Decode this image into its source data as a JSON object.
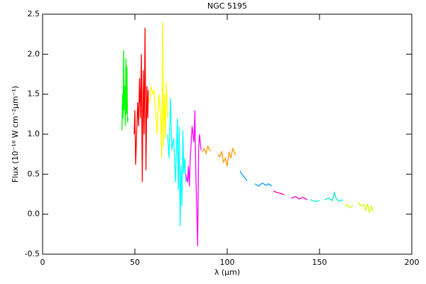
{
  "chart_data": {
    "type": "line",
    "title": "NGC 5195",
    "x_label": "λ (μm)",
    "y_label": "Flux (10⁻¹⁸ W cm⁻²μm⁻¹)",
    "xlim": [
      0,
      200
    ],
    "xticks": [
      0,
      50,
      100,
      150,
      200
    ],
    "ylim": [
      -0.5,
      2.5
    ],
    "yticks": [
      -0.5,
      {
        "value": 0,
        "label": "0.0"
      },
      0.5,
      {
        "value": 1,
        "label": "1.0"
      },
      1.5,
      {
        "value": 2,
        "label": "2.0"
      },
      2.5
    ],
    "grid": false,
    "series": [
      {
        "color": "#00ff00",
        "x": [
          43.0,
          43.3,
          43.6,
          43.9,
          44.2,
          44.5,
          44.8,
          45.1,
          45.4,
          45.7,
          46.0,
          46.3
        ],
        "values": [
          1.05,
          1.5,
          1.2,
          2.05,
          1.3,
          1.6,
          1.1,
          1.95,
          1.25,
          1.85,
          1.15,
          1.2
        ]
      },
      {
        "color": "#ff0000",
        "x": [
          49.6,
          50,
          50.4,
          50.8,
          51.5,
          52,
          52.5,
          53,
          53.5,
          54,
          54.5,
          55,
          55.5,
          56,
          56.5,
          57,
          57.3
        ],
        "values": [
          1.0,
          1.3,
          0.62,
          0.9,
          1.4,
          1.1,
          1.7,
          1.2,
          2.0,
          0.4,
          1.8,
          1.0,
          2.33,
          0.55,
          1.6,
          1.2,
          1.55
        ]
      },
      {
        "color": "#ffff00",
        "x": [
          58,
          58.8,
          59.6,
          60.4,
          61.2,
          62,
          63,
          64,
          64.5,
          65,
          65.5,
          66,
          66.5,
          67,
          67.7
        ],
        "values": [
          1.4,
          1.6,
          1.5,
          1.55,
          1.3,
          1.0,
          1.5,
          1.2,
          0.7,
          2.4,
          0.85,
          1.5,
          0.95,
          1.65,
          1.2
        ]
      },
      {
        "color": "#00ffff",
        "x": [
          67.7,
          68.5,
          69.3,
          70,
          71,
          72,
          73,
          73.5,
          74,
          74.5,
          75,
          75.5,
          76,
          76.5,
          77,
          77.7
        ],
        "values": [
          1.0,
          0.7,
          1.45,
          0.8,
          0.95,
          0.4,
          1.2,
          0.3,
          1.1,
          -0.15,
          0.6,
          0.1,
          1.05,
          0.5,
          0.7,
          0.4
        ]
      },
      {
        "color": "#ff00ff",
        "x": [
          77.5,
          78.5,
          79,
          79.5,
          80,
          81,
          82,
          82.5,
          83,
          83.5,
          84,
          84.5,
          85,
          85.8
        ],
        "values": [
          0.5,
          0.4,
          0.6,
          0.35,
          0.7,
          1.1,
          0.9,
          1.3,
          0.5,
          0.1,
          -0.4,
          0.8,
          1.0,
          0.8
        ]
      },
      {
        "color": "#ff9900",
        "x": [
          86.5,
          87.5,
          88.5,
          89.5,
          90.5,
          91
        ],
        "values": [
          0.78,
          0.82,
          0.76,
          0.85,
          0.8,
          0.79
        ]
      },
      {
        "color": "#ff9900",
        "x": [
          95,
          96,
          97,
          98,
          99,
          100,
          101,
          102,
          103,
          104.6
        ],
        "values": [
          0.75,
          0.72,
          0.78,
          0.65,
          0.7,
          0.6,
          0.78,
          0.7,
          0.82,
          0.74
        ]
      },
      {
        "color": "#0099ff",
        "x": [
          107,
          108,
          109,
          110,
          110.8
        ],
        "values": [
          0.54,
          0.5,
          0.47,
          0.44,
          0.42
        ]
      },
      {
        "color": "#0099ff",
        "x": [
          115,
          117,
          119,
          121,
          122.5,
          124
        ],
        "values": [
          0.38,
          0.35,
          0.39,
          0.36,
          0.38,
          0.35
        ]
      },
      {
        "color": "#ff0099",
        "x": [
          125,
          127,
          129,
          131
        ],
        "values": [
          0.29,
          0.27,
          0.26,
          0.24
        ]
      },
      {
        "color": "#ff00cc",
        "x": [
          134.6,
          137,
          139,
          141,
          143.5
        ],
        "values": [
          0.2,
          0.22,
          0.19,
          0.21,
          0.18
        ]
      },
      {
        "color": "#00ffcc",
        "x": [
          145,
          147.5,
          150
        ],
        "values": [
          0.18,
          0.16,
          0.17
        ]
      },
      {
        "color": "#00eecc",
        "x": [
          152.7,
          155,
          157,
          158,
          159,
          160.5,
          162.7
        ],
        "values": [
          0.18,
          0.2,
          0.17,
          0.27,
          0.2,
          0.16,
          0.18
        ]
      },
      {
        "color": "#ccff00",
        "x": [
          163.5,
          165,
          166.5,
          168
        ],
        "values": [
          0.1,
          0.12,
          0.08,
          0.11
        ]
      },
      {
        "color": "#ccff00",
        "x": [
          171,
          172.5,
          174,
          175,
          176,
          177,
          178,
          179
        ],
        "values": [
          0.15,
          0.1,
          0.12,
          0.05,
          0.13,
          0.02,
          0.1,
          0.04
        ]
      }
    ]
  }
}
